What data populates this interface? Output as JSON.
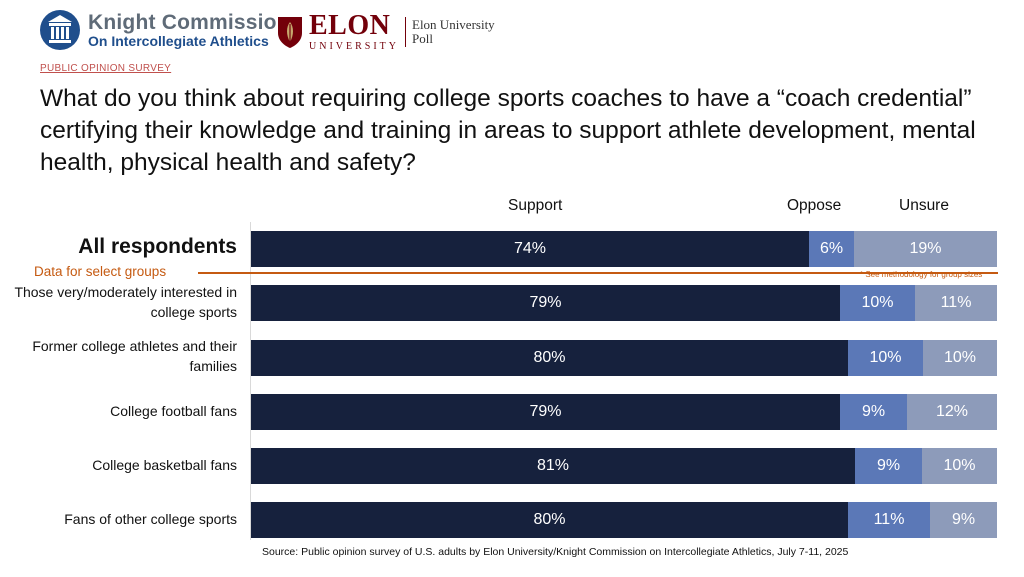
{
  "header": {
    "kc_line1": "Knight Commission",
    "kc_line2": "On Intercollegiate Athletics",
    "elon_main": "ELON",
    "elon_sub": "UNIVERSITY",
    "elon_poll_1": "Elon University",
    "elon_poll_2": "Poll"
  },
  "survey_tag": "PUBLIC OPINION SURVEY",
  "question": "What do you think about requiring college sports coaches to have a “coach credential” certifying their knowledge and training in areas to support athlete development, mental health, physical health and safety?",
  "divider": {
    "label": "Data for select groups",
    "note": "* See methodology for group sizes"
  },
  "source": "Source: Public opinion survey of U.S. adults by Elon University/Knight Commission on Intercollegiate Athletics, July 7-11, 2025",
  "colors": {
    "support": "#16213d",
    "oppose": "#5b78b7",
    "unsure": "#8d9bba",
    "accent": "#c55a11"
  },
  "chart_data": {
    "type": "bar",
    "orientation": "horizontal",
    "stacked": true,
    "percent_scale": true,
    "categories": [
      "All respondents",
      "Those very/moderately interested in college sports",
      "Former college athletes and their families",
      "College football fans",
      "College basketball fans",
      "Fans of other college sports"
    ],
    "series": [
      {
        "name": "Support",
        "values": [
          74,
          79,
          80,
          79,
          81,
          80
        ],
        "labels": [
          "74%",
          "79%",
          "80%",
          "79%",
          "81%",
          "80%"
        ]
      },
      {
        "name": "Oppose",
        "values": [
          6,
          10,
          10,
          9,
          9,
          11
        ],
        "labels": [
          "6%",
          "10%",
          "10%",
          "9%",
          "9%",
          "11%"
        ]
      },
      {
        "name": "Unsure",
        "values": [
          19,
          11,
          10,
          12,
          10,
          9
        ],
        "labels": [
          "19%",
          "11%",
          "10%",
          "12%",
          "10%",
          "9%"
        ]
      }
    ]
  }
}
